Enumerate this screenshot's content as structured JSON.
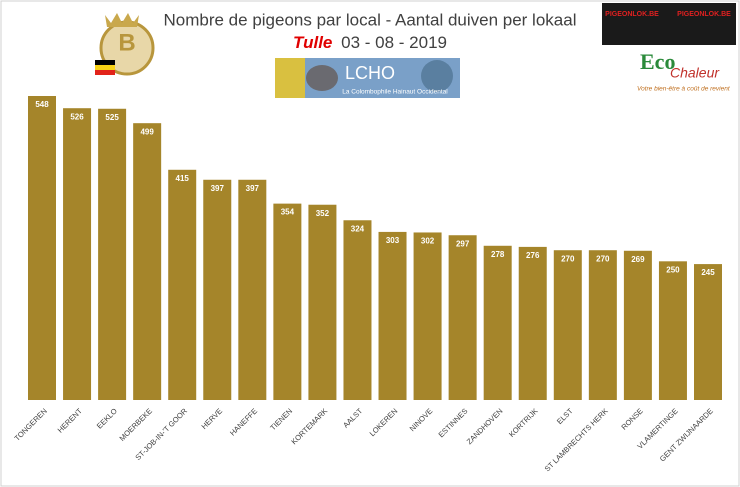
{
  "chart_data": {
    "type": "bar",
    "title": "Nombre de pigeons par local - Aantal duiven per lokaal",
    "subtitle_place": "Tulle",
    "subtitle_date": "03 - 08 - 2019",
    "categories": [
      "TONGEREN",
      "HERENT",
      "EEKLO",
      "MOERBEKE",
      "ST-JOB-IN-'T GOOR",
      "HERVE",
      "HANEFFE",
      "TIENEN",
      "KORTEMARK",
      "AALST",
      "LOKEREN",
      "NINOVE",
      "ESTINNES",
      "ZANDHOVEN",
      "KORTRIJK",
      "ELST",
      "ST LAMBRECHTS HERK",
      "RONSE",
      "VLAMERTINGE",
      "GENT ZWIJNAARDE"
    ],
    "values": [
      548,
      526,
      525,
      499,
      415,
      397,
      397,
      354,
      352,
      324,
      303,
      302,
      297,
      278,
      276,
      270,
      270,
      269,
      250,
      245
    ],
    "color": "#a5852a"
  },
  "logos": {
    "lcho": "LCHO",
    "lcho_sub": "La Colombophile Hainaut Occidental",
    "eco": "Eco",
    "chaleur": "Chaleur",
    "eco_tagline": "Votre bien-être à coût de revient",
    "pigeonlok": "PIGEONLOK.BE",
    "badge": "B"
  }
}
